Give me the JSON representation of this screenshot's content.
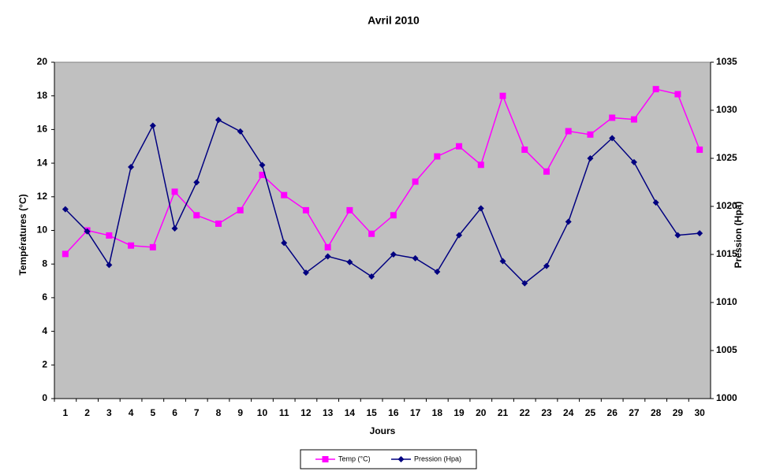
{
  "chart_data": {
    "type": "line",
    "title": "Avril 2010",
    "x_label": "Jours",
    "y_label": "Températures (°C)",
    "y2_label": "Pression (Hpa)",
    "categories": [
      "1",
      "2",
      "3",
      "4",
      "5",
      "6",
      "7",
      "8",
      "9",
      "10",
      "11",
      "12",
      "13",
      "14",
      "15",
      "16",
      "17",
      "18",
      "19",
      "20",
      "21",
      "22",
      "23",
      "24",
      "25",
      "26",
      "27",
      "28",
      "29",
      "30"
    ],
    "series": [
      {
        "name": "Temp (°C)",
        "color": "#ff00ff",
        "marker": "square",
        "values": [
          8.6,
          10.0,
          9.7,
          9.1,
          9.0,
          12.3,
          10.9,
          10.4,
          11.2,
          13.3,
          12.1,
          11.2,
          9.0,
          11.2,
          9.8,
          10.9,
          12.9,
          14.4,
          15.0,
          13.9,
          18.0,
          14.8,
          13.5,
          15.9,
          15.7,
          16.7,
          16.6,
          18.4,
          18.1,
          14.8
        ]
      },
      {
        "name": "Pression (Hpa)",
        "color": "#000080",
        "marker": "diamond",
        "axis": "y2",
        "values": [
          1019.7,
          1017.4,
          1013.9,
          1024.1,
          1028.4,
          1017.7,
          1022.5,
          1029.0,
          1027.8,
          1024.3,
          1016.2,
          1013.1,
          1014.8,
          1014.2,
          1012.7,
          1015.0,
          1014.6,
          1013.2,
          1017.0,
          1019.8,
          1014.3,
          1012.0,
          1013.8,
          1018.4,
          1025.0,
          1027.1,
          1024.6,
          1020.4,
          1017.0,
          1017.2
        ]
      }
    ],
    "ylim": [
      0,
      20
    ],
    "yticks": [
      0,
      2,
      4,
      6,
      8,
      10,
      12,
      14,
      16,
      18,
      20
    ],
    "y2lim": [
      1000,
      1035
    ],
    "y2ticks": [
      1000,
      1005,
      1010,
      1015,
      1020,
      1025,
      1030,
      1035
    ],
    "plot_background": "#c0c0c0",
    "grid": false,
    "legend": "bottom"
  }
}
